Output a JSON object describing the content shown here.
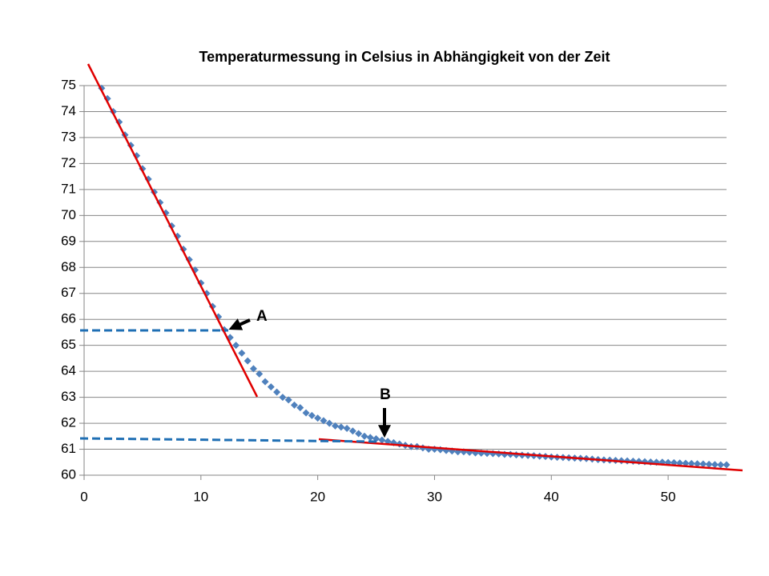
{
  "chart_data": {
    "type": "scatter",
    "title": "Temperaturmessung in Celsius in Abhängigkeit von der Zeit",
    "color": "#4f81bd",
    "x": [
      1.5,
      2,
      2.5,
      3,
      3.5,
      4,
      4.5,
      5,
      5.5,
      6,
      6.5,
      7,
      7.5,
      8,
      8.5,
      9,
      9.5,
      10,
      10.5,
      11,
      11.5,
      12,
      12.5,
      13,
      13.5,
      14,
      14.5,
      15,
      15.5,
      16,
      16.5,
      17,
      17.5,
      18,
      18.5,
      19,
      19.5,
      20,
      20.5,
      21,
      21.5,
      22,
      22.5,
      23,
      23.5,
      24,
      24.5,
      25,
      25.5,
      26,
      26.5,
      27,
      27.5,
      28,
      28.5,
      29,
      29.5,
      30,
      30.5,
      31,
      31.5,
      32,
      32.5,
      33,
      33.5,
      34,
      34.5,
      35,
      35.5,
      36,
      36.5,
      37,
      37.5,
      38,
      38.5,
      39,
      39.5,
      40,
      40.5,
      41,
      41.5,
      42,
      42.5,
      43,
      43.5,
      44,
      44.5,
      45,
      45.5,
      46,
      46.5,
      47,
      47.5,
      48,
      48.5,
      49,
      49.5,
      50,
      50.5,
      51,
      51.5,
      52,
      52.5,
      53,
      53.5,
      54,
      54.5,
      55
    ],
    "values": [
      74.9,
      74.5,
      74.0,
      73.6,
      73.1,
      72.7,
      72.3,
      71.8,
      71.4,
      70.9,
      70.5,
      70.1,
      69.6,
      69.2,
      68.7,
      68.3,
      67.9,
      67.4,
      67.0,
      66.5,
      66.1,
      65.6,
      65.3,
      65.0,
      64.7,
      64.4,
      64.1,
      63.9,
      63.6,
      63.4,
      63.2,
      63.0,
      62.9,
      62.7,
      62.6,
      62.4,
      62.3,
      62.2,
      62.1,
      62.0,
      61.9,
      61.85,
      61.8,
      61.7,
      61.6,
      61.5,
      61.45,
      61.4,
      61.35,
      61.3,
      61.25,
      61.2,
      61.15,
      61.1,
      61.1,
      61.05,
      61.0,
      61.0,
      60.98,
      60.95,
      60.93,
      60.9,
      60.9,
      60.88,
      60.86,
      60.85,
      60.84,
      60.83,
      60.82,
      60.8,
      60.8,
      60.78,
      60.77,
      60.76,
      60.75,
      60.73,
      60.72,
      60.7,
      60.69,
      60.68,
      60.67,
      60.66,
      60.65,
      60.64,
      60.62,
      60.6,
      60.59,
      60.58,
      60.57,
      60.56,
      60.55,
      60.54,
      60.53,
      60.52,
      60.51,
      60.5,
      60.5,
      60.49,
      60.48,
      60.47,
      60.46,
      60.45,
      60.44,
      60.43,
      60.42,
      60.41,
      60.4,
      60.4
    ],
    "xlim": [
      0,
      55
    ],
    "xticks": [
      0,
      10,
      20,
      30,
      40,
      50
    ],
    "ylim": [
      60,
      75
    ],
    "yticks": [
      60,
      61,
      62,
      63,
      64,
      65,
      66,
      67,
      68,
      69,
      70,
      71,
      72,
      73,
      74,
      75
    ],
    "grid": true,
    "annotations": [
      {
        "text": "A"
      },
      {
        "text": "B"
      }
    ]
  }
}
